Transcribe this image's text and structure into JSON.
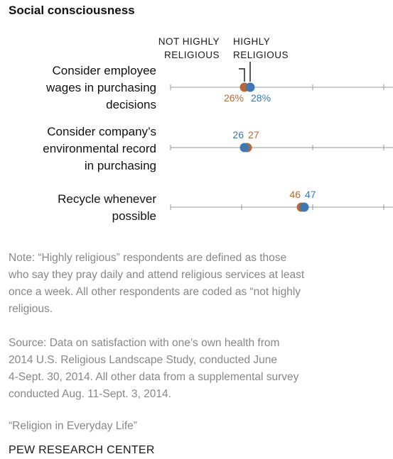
{
  "colors": {
    "not_highly": "#b5693a",
    "highly": "#3f78b0",
    "axis": "#999999",
    "note": "#888888"
  },
  "chart_data": {
    "type": "dot",
    "title": "Social consciousness",
    "legend": {
      "not_highly": [
        "NOT HIGHLY",
        "RELIGIOUS"
      ],
      "highly": [
        "HIGHLY",
        "RELIGIOUS"
      ]
    },
    "categories": [
      [
        "Consider employee",
        "wages in purchasing",
        "decisions"
      ],
      [
        "Consider company’s",
        "environmental record",
        "in purchasing"
      ],
      [
        "Recycle whenever",
        "possible"
      ]
    ],
    "series": [
      {
        "name": "NOT HIGHLY RELIGIOUS",
        "values": [
          26,
          27,
          46
        ],
        "labels": [
          "26%",
          "27",
          "46"
        ]
      },
      {
        "name": "HIGHLY RELIGIOUS",
        "values": [
          28,
          26,
          47
        ],
        "labels": [
          "28%",
          "26",
          "47"
        ]
      }
    ],
    "xlim": [
      0,
      100
    ]
  },
  "notes": {
    "note": [
      "Note: “Highly religious” respondents are defined as those",
      "who say they pray daily and attend religious services at least",
      "once a week. All other respondents are coded as “not highly",
      "religious."
    ],
    "source": [
      "Source: Data on satisfaction with one’s own health from",
      "2014 U.S. Religious Landscape Study, conducted June",
      "4-Sept. 30, 2014. All other data from a supplemental survey",
      "conducted Aug. 11-Sept. 3, 2014."
    ],
    "report": "“Religion in Everyday Life”",
    "org": "PEW RESEARCH CENTER"
  }
}
